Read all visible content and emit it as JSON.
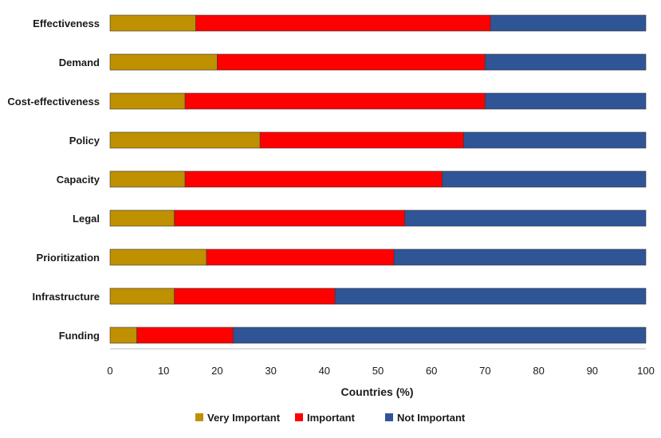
{
  "chart_data": {
    "type": "bar",
    "orientation": "horizontal",
    "stacked": true,
    "title": "",
    "xlabel": "Countries (%)",
    "ylabel": "",
    "xlim": [
      0,
      100
    ],
    "xticks": [
      "0",
      "10",
      "20",
      "30",
      "40",
      "50",
      "60",
      "70",
      "80",
      "90",
      "100"
    ],
    "categories": [
      "Effectiveness",
      "Demand",
      "Cost-effectiveness",
      "Policy",
      "Capacity",
      "Legal",
      "Prioritization",
      "Infrastructure",
      "Funding"
    ],
    "series": [
      {
        "name": "Very Important",
        "color": "#bf9000",
        "values": [
          16,
          20,
          14,
          28,
          14,
          12,
          18,
          12,
          5
        ]
      },
      {
        "name": "Important",
        "color": "#ff0000",
        "values": [
          55,
          50,
          56,
          38,
          48,
          43,
          35,
          30,
          18
        ]
      },
      {
        "name": "Not Important",
        "color": "#2f5597",
        "values": [
          29,
          30,
          30,
          34,
          38,
          45,
          47,
          58,
          77
        ]
      }
    ],
    "legend_position": "bottom",
    "grid": false
  }
}
